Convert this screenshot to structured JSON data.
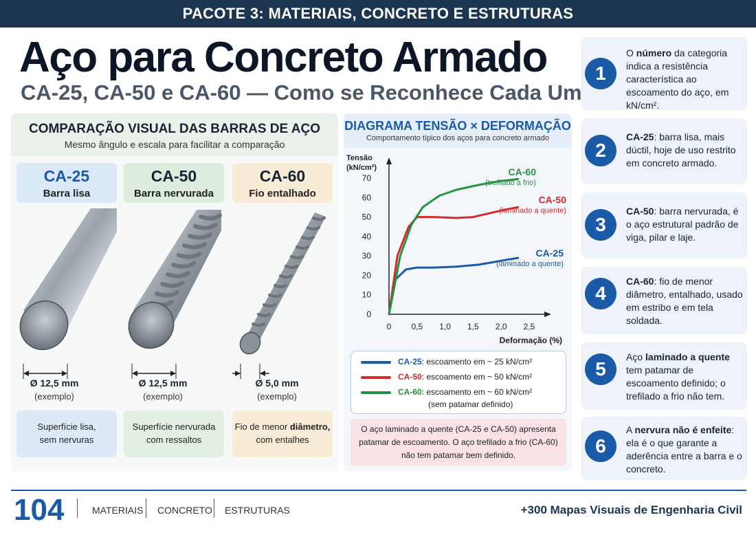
{
  "header": {
    "banner": "PACOTE 3: MATERIAIS, CONCRETO E ESTRUTURAS"
  },
  "title": {
    "main": "Aço para Concreto Armado",
    "sub": "CA-25, CA-50 e CA-60 — Como se Reconhece Cada Um"
  },
  "comparison": {
    "title": "COMPARAÇÃO VISUAL DAS BARRAS DE AÇO",
    "subtitle": "Mesmo ângulo e escala para facilitar a comparação",
    "bars": [
      {
        "code": "CA-25",
        "type": "Barra lisa",
        "diameter": "Ø 12,5 mm",
        "example": "(exemplo)",
        "desc1": "Superfície lisa,",
        "desc2": "sem nervuras",
        "tag_color": "#dbe8f7",
        "code_color": "#1b5aa6",
        "desc_color": "#dde9f7"
      },
      {
        "code": "CA-50",
        "type": "Barra nervurada",
        "diameter": "Ø 12,5 mm",
        "example": "(exemplo)",
        "desc1": "Superfície nervurada",
        "desc2": "com ressaltos",
        "tag_color": "#dcecdd",
        "code_color": "#1a2233",
        "desc_color": "#e2efe2"
      },
      {
        "code": "CA-60",
        "type": "Fio entalhado",
        "diameter": "Ø 5,0 mm",
        "example": "(exemplo)",
        "desc1": "Fio de menor",
        "desc1b": "diâmetro,",
        "desc2": "com entalhes",
        "tag_color": "#f8ecd6",
        "code_color": "#1a2233",
        "desc_color": "#f9ecd6"
      }
    ]
  },
  "diagram": {
    "title": "DIAGRAMA TENSÃO × DEFORMAÇÃO",
    "subtitle": "Comportamento típico dos aços para concreto armado",
    "legend": [
      {
        "name": "CA-25",
        "text": ": escoamento em ~ 25 kN/cm²",
        "color": "#1b5aa6"
      },
      {
        "name": "CA-50",
        "text": ": escoamento em ~ 50 kN/cm²",
        "color": "#d42a2a"
      },
      {
        "name": "CA-60",
        "text": ": escoamento em ~ 60 kN/cm²",
        "color": "#24923f"
      }
    ],
    "legend_note": "(sem patamar definido)",
    "note_lines": [
      "O aço laminado a quente (CA-25 e CA-50) apresenta",
      "patamar de escoamento. O aço trefilado a frio (CA-60)",
      "não tem patamar bem definido."
    ]
  },
  "chart_data": {
    "type": "line",
    "title": "DIAGRAMA TENSÃO × DEFORMAÇÃO",
    "xlabel": "Deformação (%)",
    "ylabel": "Tensão (kN/cm²)",
    "ylabel_line1": "Tensão",
    "ylabel_line2": "(kN/cm²)",
    "xlim": [
      0,
      2.5
    ],
    "ylim": [
      0,
      70
    ],
    "xticks": [
      "0",
      "0,5",
      "1,0",
      "1,5",
      "2,0",
      "2,5"
    ],
    "xtick_values": [
      0,
      0.5,
      1.0,
      1.5,
      2.0,
      2.5
    ],
    "yticks": [
      "0",
      "10",
      "20",
      "30",
      "40",
      "50",
      "60",
      "70"
    ],
    "ytick_values": [
      0,
      10,
      20,
      30,
      40,
      50,
      60,
      70
    ],
    "grid": false,
    "series": [
      {
        "name": "CA-25",
        "sublabel": "(laminado a quente)",
        "color": "#1b5aa6",
        "x": [
          0,
          0.12,
          0.3,
          0.5,
          0.8,
          1.2,
          1.6,
          2.0,
          2.3
        ],
        "y": [
          0,
          18,
          23,
          24,
          24,
          24.5,
          25.5,
          27.5,
          29
        ]
      },
      {
        "name": "CA-50",
        "sublabel": "(laminado a quente)",
        "color": "#d42a2a",
        "x": [
          0,
          0.15,
          0.35,
          0.5,
          0.8,
          1.2,
          1.5,
          1.8,
          2.1,
          2.3
        ],
        "y": [
          0,
          30,
          45,
          50,
          50,
          49.5,
          50,
          52,
          54,
          55
        ]
      },
      {
        "name": "CA-60",
        "sublabel": "(trefilado a frio)",
        "color": "#24923f",
        "x": [
          0,
          0.2,
          0.4,
          0.6,
          0.9,
          1.2,
          1.6,
          2.0,
          2.3
        ],
        "y": [
          0,
          30,
          46,
          55,
          61,
          64,
          66.5,
          68.5,
          69.5
        ]
      }
    ]
  },
  "steps": [
    {
      "num": "1",
      "html_parts": [
        [
          "O ",
          false
        ],
        [
          "número",
          true
        ],
        [
          " da categoria indica a resistência característica ao escoamento do aço, em kN/cm².",
          false
        ]
      ]
    },
    {
      "num": "2",
      "html_parts": [
        [
          "CA-25",
          true
        ],
        [
          ": barra lisa, mais dúctil, hoje de uso restrito em concreto armado.",
          false
        ]
      ]
    },
    {
      "num": "3",
      "html_parts": [
        [
          "CA-50",
          true
        ],
        [
          ": barra nervurada, é o aço estrutural padrão de viga, pilar e laje.",
          false
        ]
      ]
    },
    {
      "num": "4",
      "html_parts": [
        [
          "CA-60",
          true
        ],
        [
          ": fio de menor diâmetro, entalhado, usado em estribo e em tela soldada.",
          false
        ]
      ]
    },
    {
      "num": "5",
      "html_parts": [
        [
          "Aço ",
          false
        ],
        [
          "laminado a quente",
          true
        ],
        [
          " tem patamar de escoamento definido; o trefilado a frio não tem.",
          false
        ]
      ]
    },
    {
      "num": "6",
      "html_parts": [
        [
          "A ",
          false
        ],
        [
          "nervura não é enfeite",
          true
        ],
        [
          ": ela é o que garante a aderência entre a barra e o concreto.",
          false
        ]
      ]
    }
  ],
  "footer": {
    "page": "104",
    "items": [
      "MATERIAIS",
      "CONCRETO",
      "ESTRUTURAS"
    ],
    "brand": "+300 Mapas Visuais de Engenharia Civil"
  }
}
